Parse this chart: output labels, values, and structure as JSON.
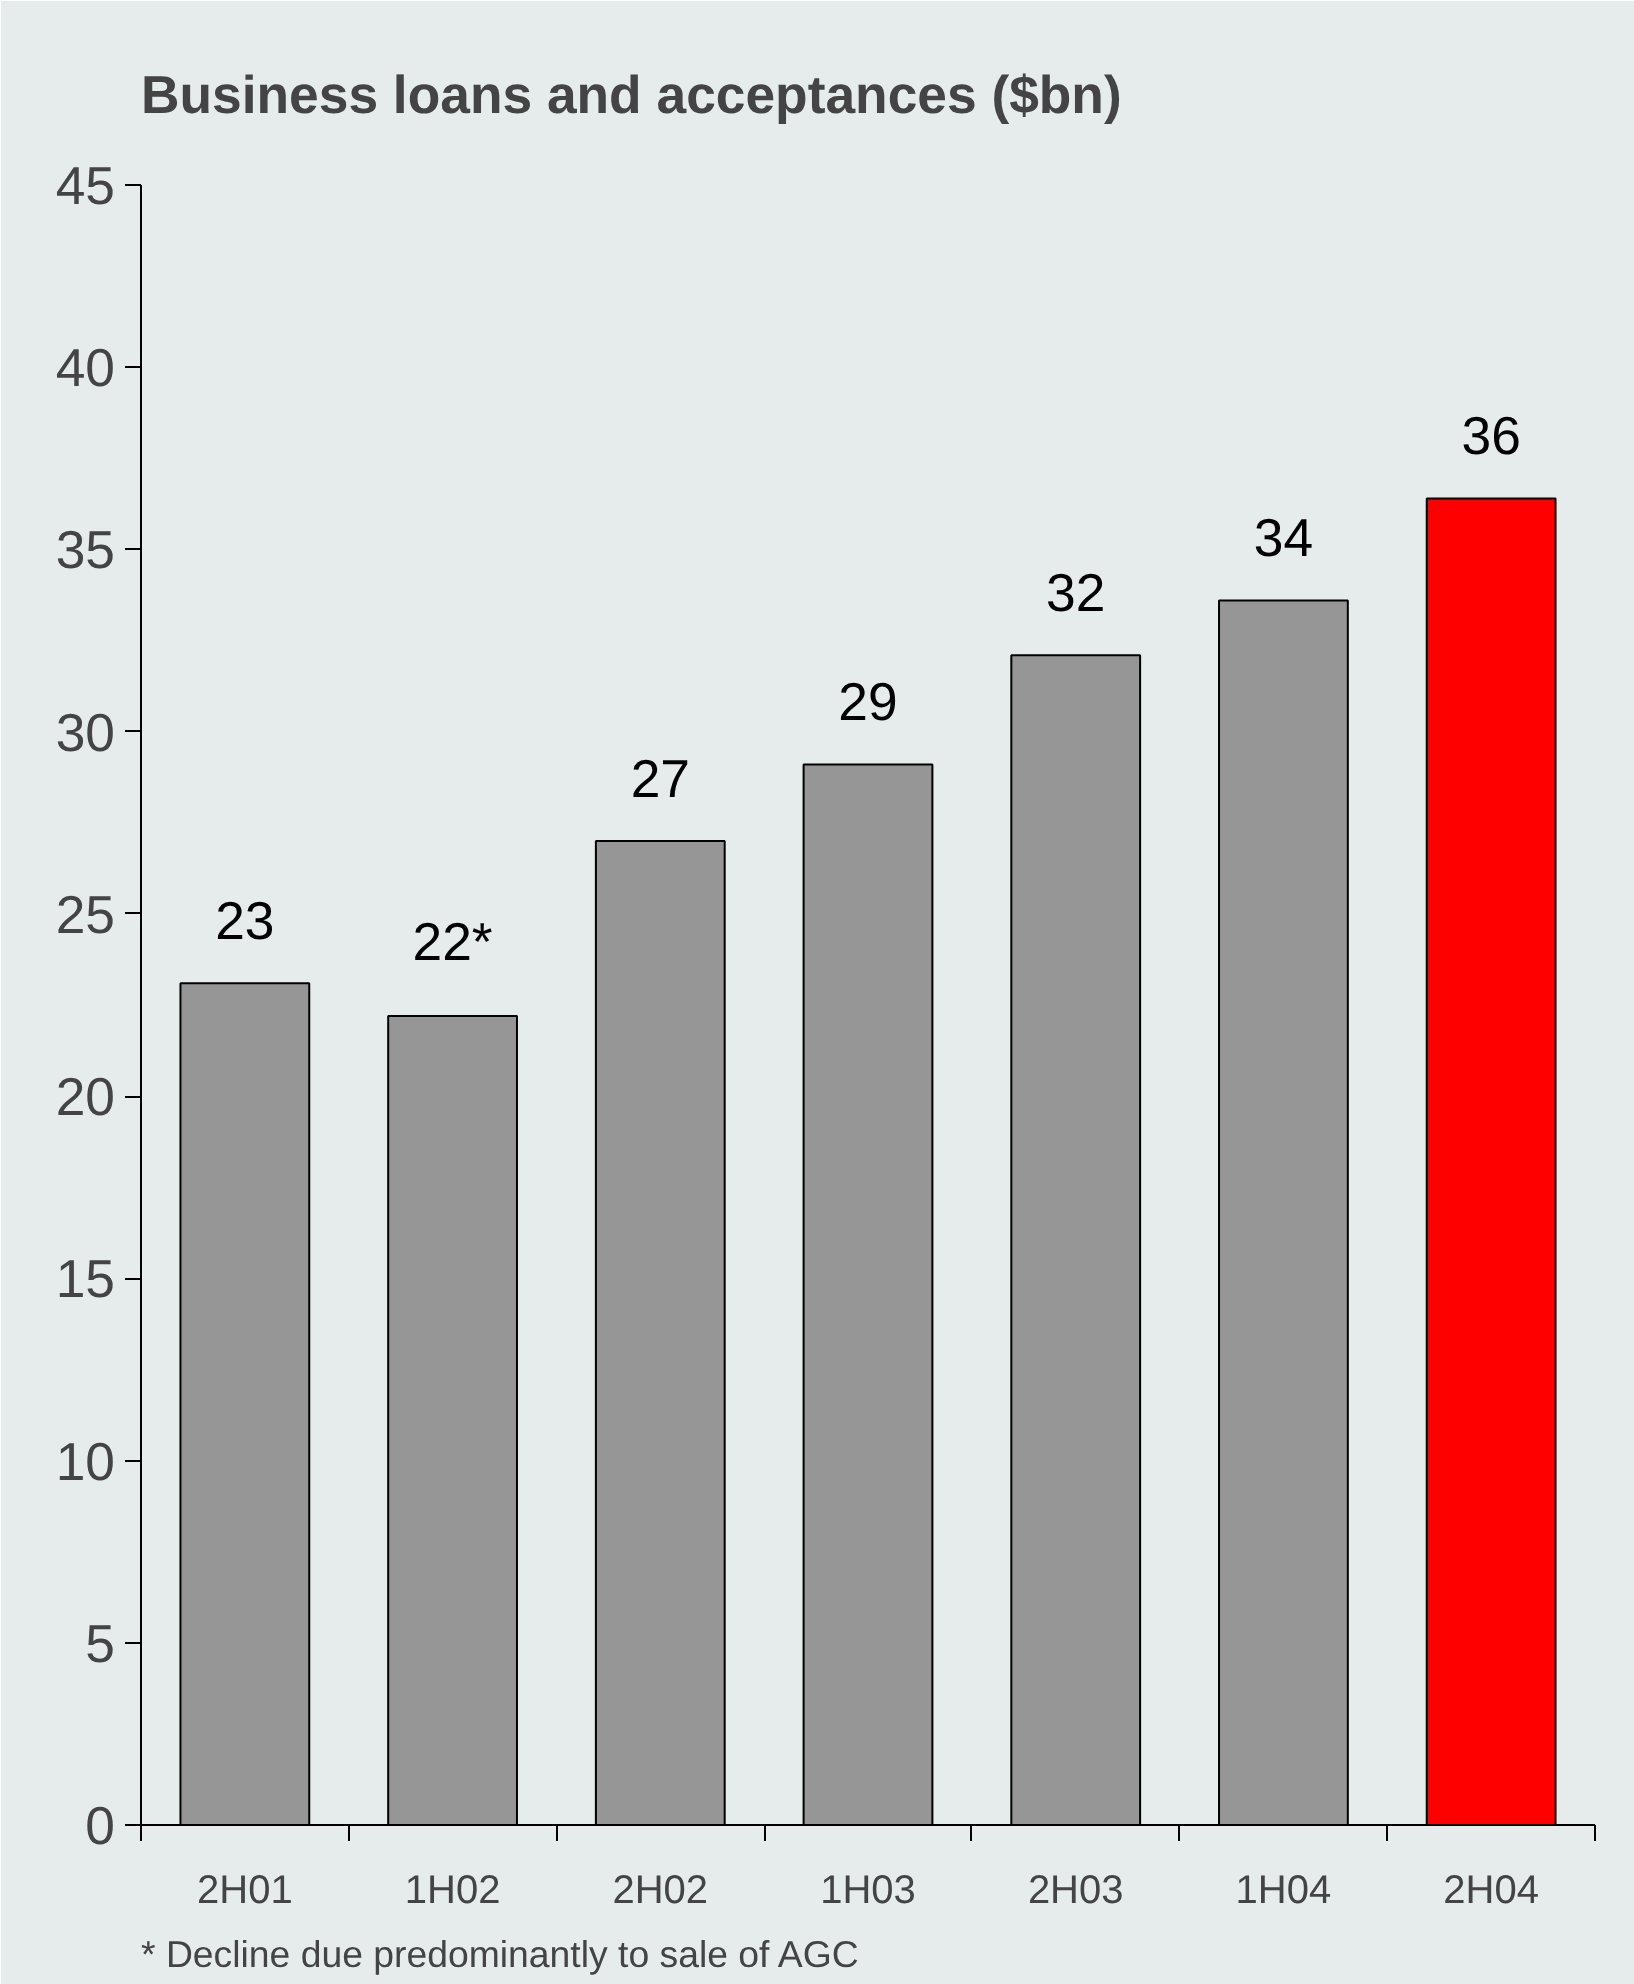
{
  "chart_data": {
    "type": "bar",
    "title": "Business loans and acceptances ($bn)",
    "categories": [
      "2H01",
      "1H02",
      "2H02",
      "1H03",
      "2H03",
      "1H04",
      "2H04"
    ],
    "values": [
      23.1,
      22.2,
      27.0,
      29.1,
      32.1,
      33.6,
      36.4
    ],
    "value_labels": [
      "23",
      "22*",
      "27",
      "29",
      "32",
      "34",
      "36"
    ],
    "colors": [
      "#969696",
      "#969696",
      "#969696",
      "#969696",
      "#969696",
      "#969696",
      "#ff0000"
    ],
    "ylim": [
      0,
      45
    ],
    "yticks": [
      0,
      5,
      10,
      15,
      20,
      25,
      30,
      35,
      40,
      45
    ],
    "annotations": [
      "* Decline due predominantly to sale of AGC"
    ]
  }
}
